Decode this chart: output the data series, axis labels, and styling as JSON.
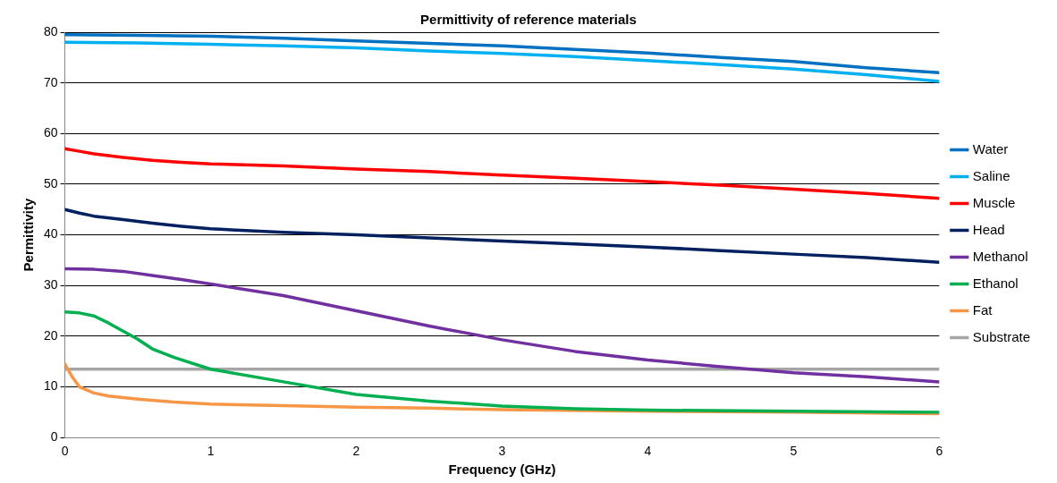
{
  "chart_data": {
    "type": "line",
    "title": "Permittivity of reference materials",
    "xlabel": "Frequency (GHz)",
    "ylabel": "Permittivity",
    "xlim": [
      0,
      6
    ],
    "xticks": [
      0,
      1,
      2,
      3,
      4,
      5,
      6
    ],
    "ylim": [
      0,
      80
    ],
    "yticks": [
      0,
      10,
      20,
      30,
      40,
      50,
      60,
      70,
      80
    ],
    "grid": "y",
    "legend": "right",
    "marker": "none",
    "line_style": "solid",
    "series": [
      {
        "name": "Water",
        "color": "#0070c0",
        "x": [
          0,
          0.5,
          1,
          1.5,
          2,
          2.5,
          3,
          3.5,
          4,
          4.5,
          5,
          5.5,
          6
        ],
        "values": [
          79.5,
          79.4,
          79.2,
          78.8,
          78.3,
          77.8,
          77.3,
          76.6,
          75.9,
          75,
          74.2,
          73,
          72
        ]
      },
      {
        "name": "Saline",
        "color": "#00b0f0",
        "x": [
          0,
          0.5,
          1,
          1.5,
          2,
          2.5,
          3,
          3.5,
          4,
          4.5,
          5,
          5.5,
          6
        ],
        "values": [
          78,
          77.9,
          77.6,
          77.3,
          76.9,
          76.3,
          75.8,
          75.2,
          74.4,
          73.6,
          72.7,
          71.6,
          70.3
        ]
      },
      {
        "name": "Muscle",
        "color": "#ff0000",
        "x": [
          0,
          0.1,
          0.2,
          0.4,
          0.6,
          0.8,
          1,
          1.5,
          2,
          2.5,
          3,
          3.5,
          4,
          4.5,
          5,
          5.5,
          6
        ],
        "values": [
          57,
          56.5,
          56,
          55.3,
          54.7,
          54.3,
          54,
          53.6,
          53,
          52.5,
          51.8,
          51.2,
          50.5,
          49.8,
          49,
          48.2,
          47.2
        ]
      },
      {
        "name": "Head",
        "color": "#002060",
        "x": [
          0,
          0.1,
          0.2,
          0.4,
          0.6,
          0.8,
          1,
          1.5,
          2,
          2.5,
          3,
          3.5,
          4,
          4.5,
          5,
          5.5,
          6
        ],
        "values": [
          45,
          44.3,
          43.7,
          43,
          42.3,
          41.7,
          41.2,
          40.5,
          40,
          39.4,
          38.8,
          38.2,
          37.6,
          36.9,
          36.2,
          35.5,
          34.6
        ]
      },
      {
        "name": "Methanol",
        "color": "#7030a0",
        "x": [
          0,
          0.2,
          0.4,
          0.6,
          0.8,
          1,
          1.5,
          2,
          2.5,
          3,
          3.5,
          4,
          4.5,
          5,
          5.5,
          6
        ],
        "values": [
          33.3,
          33.2,
          32.8,
          32,
          31.2,
          30.3,
          28,
          25,
          22,
          19.3,
          17,
          15.3,
          14,
          12.8,
          12,
          11
        ]
      },
      {
        "name": "Ethanol",
        "color": "#00b050",
        "x": [
          0,
          0.1,
          0.2,
          0.3,
          0.4,
          0.5,
          0.6,
          0.75,
          1,
          1.5,
          2,
          2.5,
          3,
          3.5,
          4,
          5,
          6
        ],
        "values": [
          24.8,
          24.6,
          24,
          22.6,
          21,
          19.4,
          17.5,
          15.8,
          13.5,
          11,
          8.5,
          7.2,
          6.2,
          5.7,
          5.4,
          5.2,
          5
        ]
      },
      {
        "name": "Fat",
        "color": "#f79646",
        "x": [
          0,
          0.05,
          0.1,
          0.2,
          0.3,
          0.5,
          0.75,
          1,
          1.5,
          2,
          2.5,
          3,
          4,
          5,
          6
        ],
        "values": [
          14.5,
          12,
          10,
          8.8,
          8.2,
          7.6,
          7,
          6.6,
          6.3,
          6,
          5.8,
          5.5,
          5.2,
          5,
          4.7
        ]
      },
      {
        "name": "Substrate",
        "color": "#a6a6a6",
        "x": [
          0,
          6
        ],
        "values": [
          13.5,
          13.5
        ]
      }
    ]
  }
}
